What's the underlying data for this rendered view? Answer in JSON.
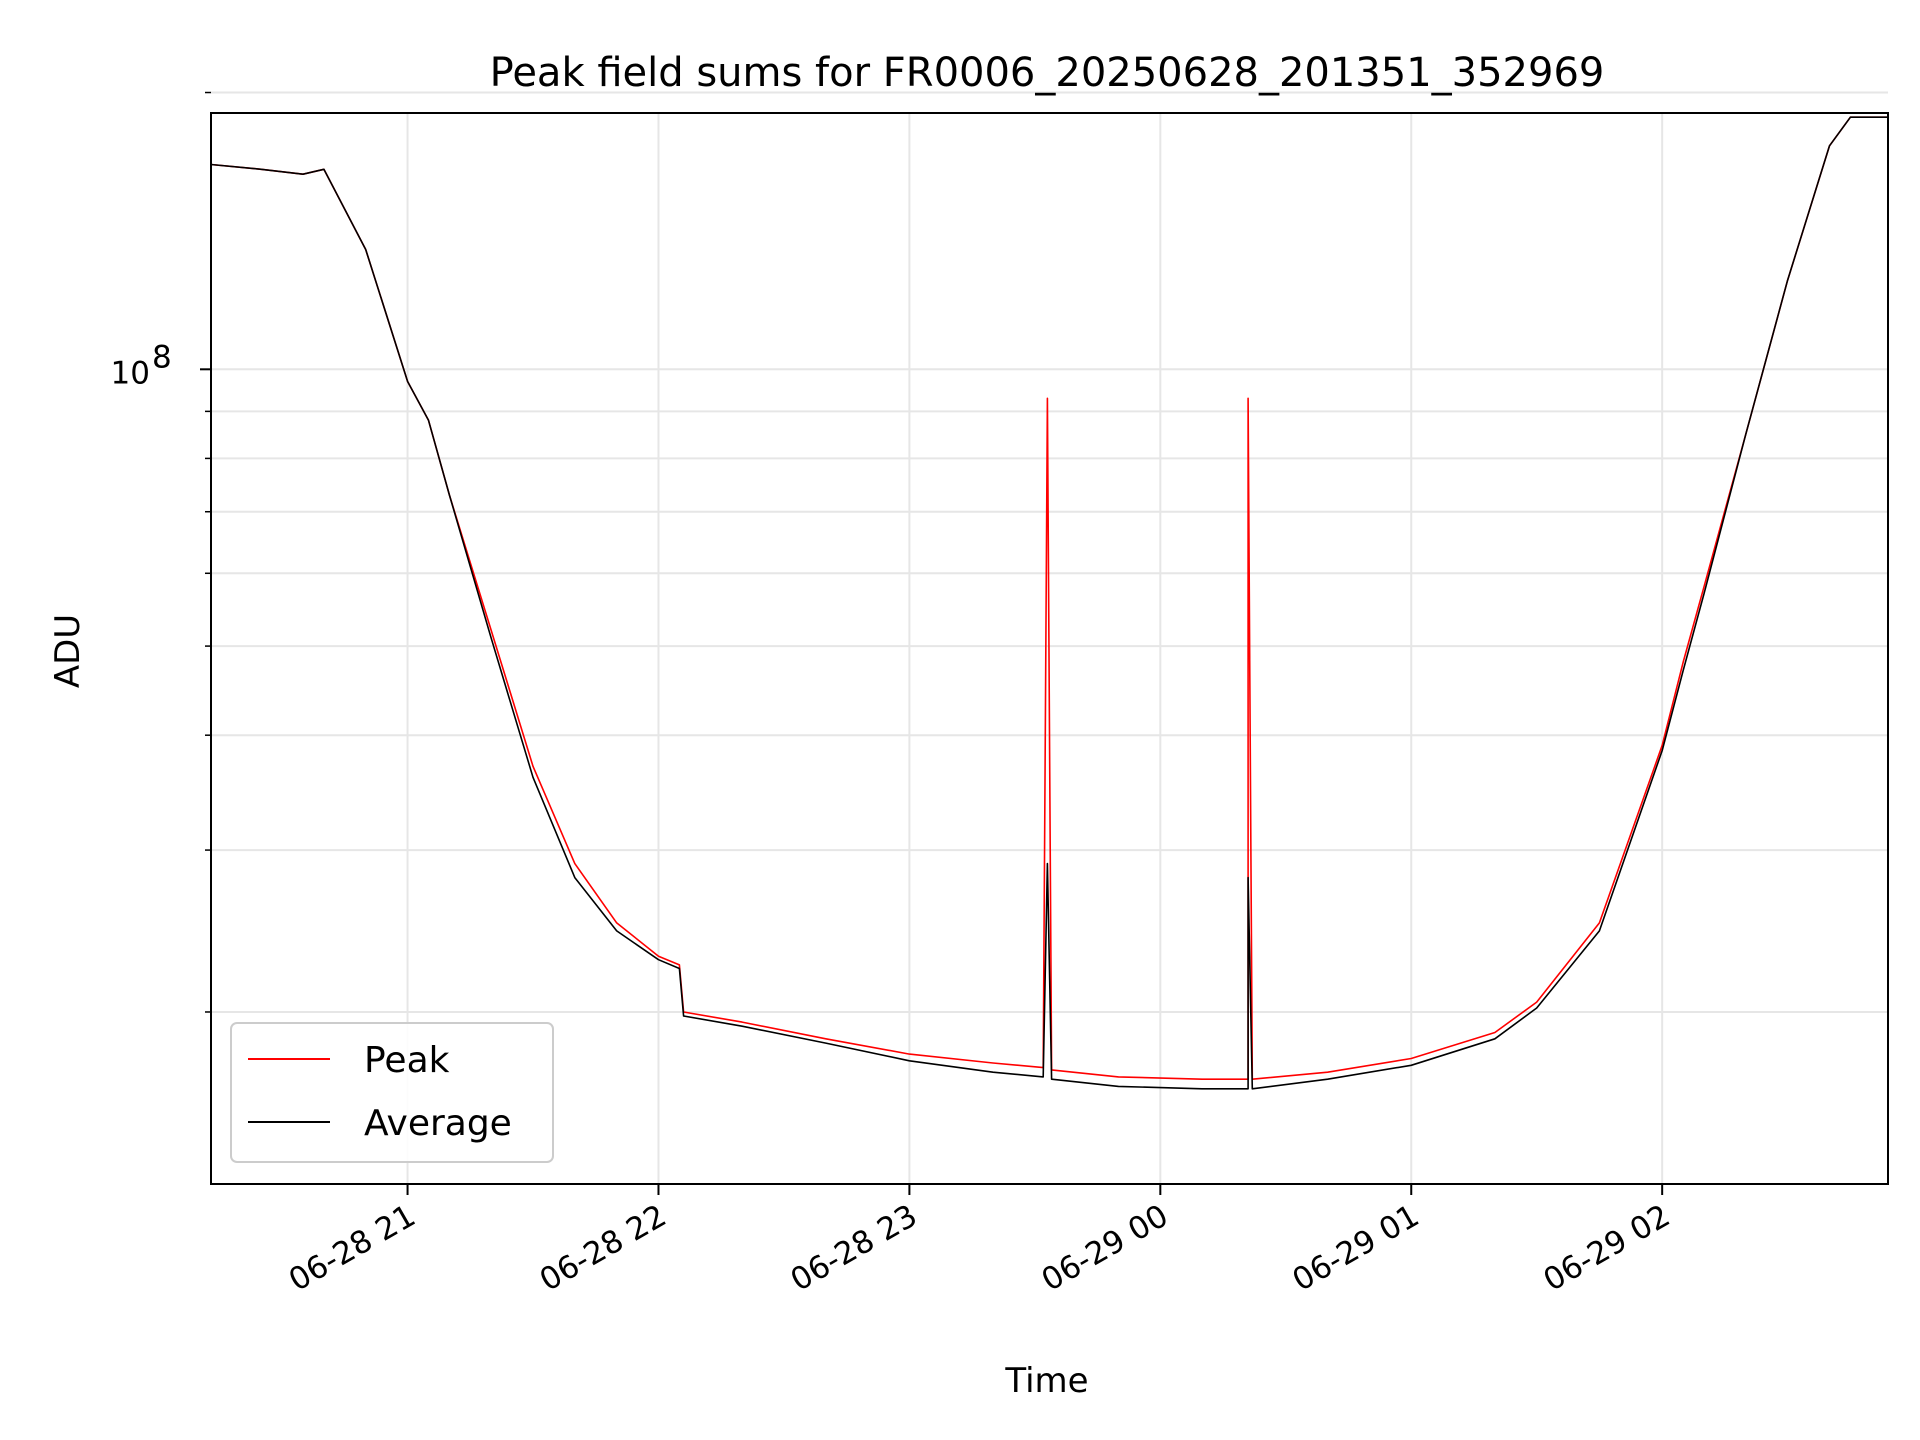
{
  "chart_data": {
    "type": "line",
    "title": "Peak field sums for FR0006_20250628_201351_352969",
    "xlabel": "Time",
    "ylabel": "ADU",
    "x_axis": {
      "kind": "datetime",
      "range": [
        "2025-06-28T20:13",
        "2025-06-29T02:54"
      ],
      "ticks": [
        {
          "value": "2025-06-28T21:00",
          "label": "06-28 21"
        },
        {
          "value": "2025-06-28T22:00",
          "label": "06-28 22"
        },
        {
          "value": "2025-06-28T23:00",
          "label": "06-28 23"
        },
        {
          "value": "2025-06-29T00:00",
          "label": "06-29 00"
        },
        {
          "value": "2025-06-29T01:00",
          "label": "06-29 01"
        },
        {
          "value": "2025-06-29T02:00",
          "label": "06-29 02"
        }
      ]
    },
    "y_axis": {
      "scale": "log",
      "range": [
        13000000,
        190000000
      ],
      "major_ticks": [
        {
          "value": 100000000,
          "label": "10",
          "exponent": "8"
        }
      ],
      "minor_ticks": [
        20000000,
        30000000,
        40000000,
        50000000,
        60000000,
        70000000,
        80000000,
        90000000,
        200000000
      ]
    },
    "grid": true,
    "legend": {
      "position": "lower-left",
      "entries": [
        "Peak",
        "Average"
      ]
    },
    "series": [
      {
        "name": "Peak",
        "color": "#ff0000",
        "points": [
          [
            "2025-06-28T20:13",
            167000000
          ],
          [
            "2025-06-28T20:25",
            165000000
          ],
          [
            "2025-06-28T20:35",
            163000000
          ],
          [
            "2025-06-28T20:40",
            165000000
          ],
          [
            "2025-06-28T20:50",
            135000000
          ],
          [
            "2025-06-28T21:00",
            97000000
          ],
          [
            "2025-06-28T21:05",
            88000000
          ],
          [
            "2025-06-28T21:10",
            73000000
          ],
          [
            "2025-06-28T21:20",
            52000000
          ],
          [
            "2025-06-28T21:30",
            37000000
          ],
          [
            "2025-06-28T21:40",
            29000000
          ],
          [
            "2025-06-28T21:50",
            25000000
          ],
          [
            "2025-06-28T22:00",
            23000000
          ],
          [
            "2025-06-28T22:05",
            22500000
          ],
          [
            "2025-06-28T22:06",
            20000000
          ],
          [
            "2025-06-28T22:20",
            19500000
          ],
          [
            "2025-06-28T22:40",
            18700000
          ],
          [
            "2025-06-28T23:00",
            18000000
          ],
          [
            "2025-06-28T23:20",
            17600000
          ],
          [
            "2025-06-28T23:32",
            17400000
          ],
          [
            "2025-06-28T23:33",
            93000000
          ],
          [
            "2025-06-28T23:34",
            17300000
          ],
          [
            "2025-06-28T23:50",
            17000000
          ],
          [
            "2025-06-29T00:10",
            16900000
          ],
          [
            "2025-06-29T00:21",
            16900000
          ],
          [
            "2025-06-29T00:21",
            93000000
          ],
          [
            "2025-06-29T00:22",
            16900000
          ],
          [
            "2025-06-29T00:40",
            17200000
          ],
          [
            "2025-06-29T01:00",
            17800000
          ],
          [
            "2025-06-29T01:20",
            19000000
          ],
          [
            "2025-06-29T01:30",
            20500000
          ],
          [
            "2025-06-29T01:45",
            25000000
          ],
          [
            "2025-06-29T02:00",
            39000000
          ],
          [
            "2025-06-29T02:05",
            48000000
          ],
          [
            "2025-06-29T02:10",
            58000000
          ],
          [
            "2025-06-29T02:20",
            85000000
          ],
          [
            "2025-06-29T02:30",
            125000000
          ],
          [
            "2025-06-29T02:40",
            175000000
          ],
          [
            "2025-06-29T02:45",
            188000000
          ],
          [
            "2025-06-29T02:54",
            188000000
          ]
        ]
      },
      {
        "name": "Average",
        "color": "#000000",
        "points": [
          [
            "2025-06-28T20:13",
            167000000
          ],
          [
            "2025-06-28T20:25",
            165000000
          ],
          [
            "2025-06-28T20:35",
            163000000
          ],
          [
            "2025-06-28T20:40",
            165000000
          ],
          [
            "2025-06-28T20:50",
            135000000
          ],
          [
            "2025-06-28T21:00",
            97000000
          ],
          [
            "2025-06-28T21:05",
            88000000
          ],
          [
            "2025-06-28T21:10",
            73000000
          ],
          [
            "2025-06-28T21:20",
            51000000
          ],
          [
            "2025-06-28T21:30",
            36000000
          ],
          [
            "2025-06-28T21:40",
            28000000
          ],
          [
            "2025-06-28T21:50",
            24500000
          ],
          [
            "2025-06-28T22:00",
            22800000
          ],
          [
            "2025-06-28T22:05",
            22300000
          ],
          [
            "2025-06-28T22:06",
            19800000
          ],
          [
            "2025-06-28T22:20",
            19300000
          ],
          [
            "2025-06-28T22:40",
            18500000
          ],
          [
            "2025-06-28T23:00",
            17700000
          ],
          [
            "2025-06-28T23:20",
            17200000
          ],
          [
            "2025-06-28T23:32",
            17000000
          ],
          [
            "2025-06-28T23:33",
            29000000
          ],
          [
            "2025-06-28T23:34",
            16900000
          ],
          [
            "2025-06-28T23:50",
            16600000
          ],
          [
            "2025-06-29T00:10",
            16500000
          ],
          [
            "2025-06-29T00:21",
            16500000
          ],
          [
            "2025-06-29T00:21",
            28000000
          ],
          [
            "2025-06-29T00:22",
            16500000
          ],
          [
            "2025-06-29T00:40",
            16900000
          ],
          [
            "2025-06-29T01:00",
            17500000
          ],
          [
            "2025-06-29T01:20",
            18700000
          ],
          [
            "2025-06-29T01:30",
            20200000
          ],
          [
            "2025-06-29T01:45",
            24500000
          ],
          [
            "2025-06-29T02:00",
            38500000
          ],
          [
            "2025-06-29T02:05",
            47000000
          ],
          [
            "2025-06-29T02:10",
            57000000
          ],
          [
            "2025-06-29T02:20",
            85000000
          ],
          [
            "2025-06-29T02:30",
            125000000
          ],
          [
            "2025-06-29T02:40",
            175000000
          ],
          [
            "2025-06-29T02:45",
            188000000
          ],
          [
            "2025-06-29T02:54",
            188000000
          ]
        ]
      }
    ]
  }
}
